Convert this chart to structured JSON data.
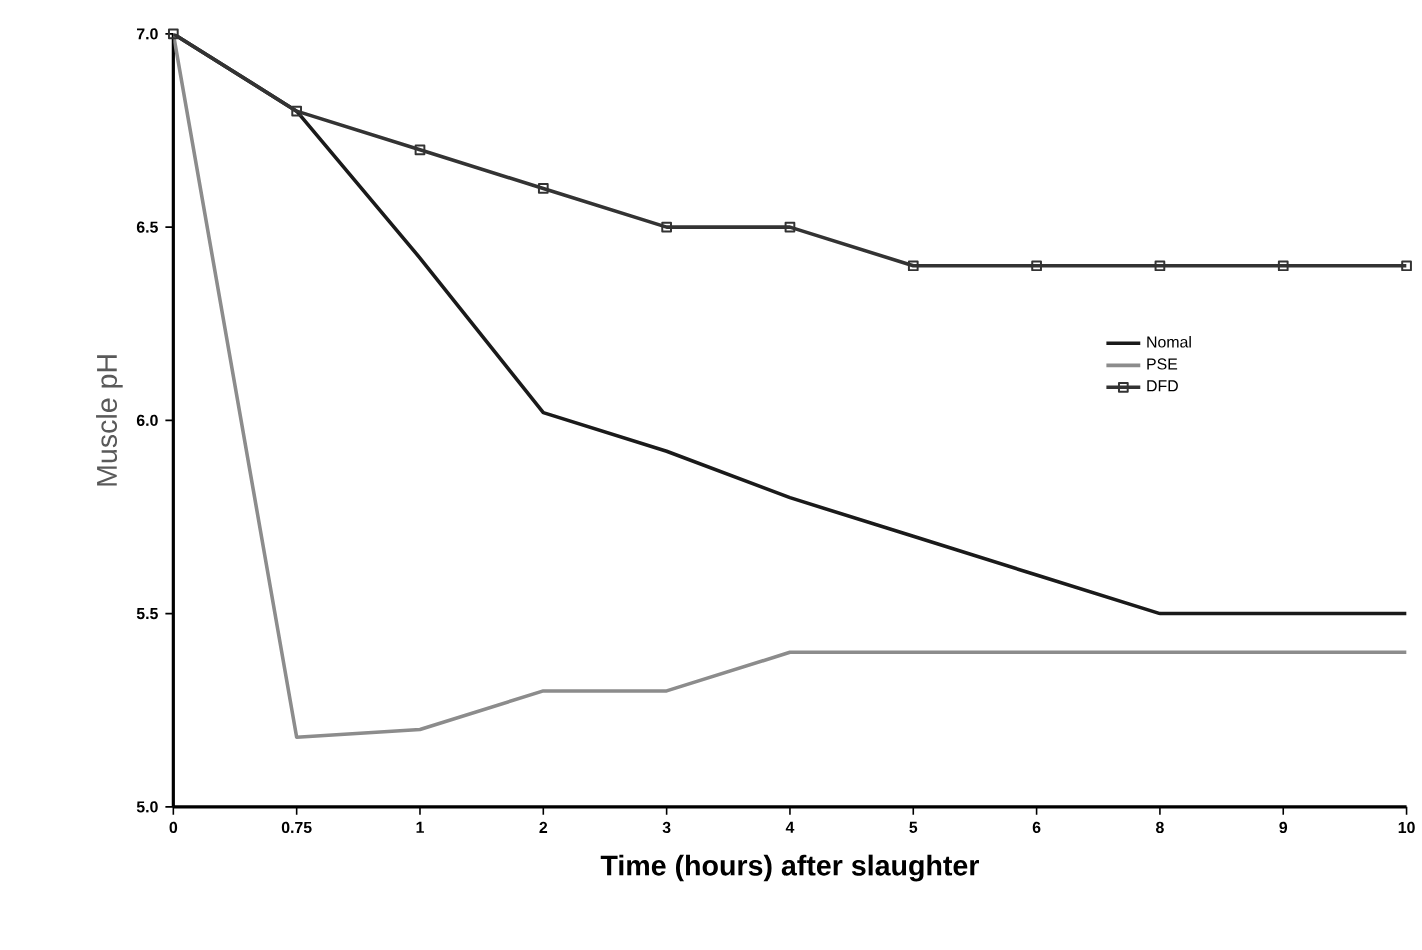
{
  "chart_data": {
    "type": "line",
    "xlabel": "Time (hours) after slaughter",
    "ylabel": "Muscle pH",
    "categories": [
      "0",
      "0.75",
      "1",
      "2",
      "3",
      "4",
      "5",
      "6",
      "8",
      "9",
      "10"
    ],
    "series": [
      {
        "name": "Nomal",
        "color": "#1a1a1a",
        "values": [
          7.0,
          6.8,
          6.42,
          6.02,
          5.92,
          5.8,
          5.7,
          5.6,
          5.5,
          5.5,
          5.5
        ]
      },
      {
        "name": "PSE",
        "color": "#8c8c8c",
        "values": [
          7.0,
          5.18,
          5.2,
          5.3,
          5.3,
          5.4,
          5.4,
          5.4,
          5.4,
          5.4,
          5.4
        ]
      },
      {
        "name": "DFD",
        "color": "#333333",
        "marker": "square",
        "values": [
          7.0,
          6.8,
          6.7,
          6.6,
          6.5,
          6.5,
          6.4,
          6.4,
          6.4,
          6.4,
          6.4
        ]
      }
    ],
    "ylim": [
      5.0,
      7.0
    ],
    "yticks": [
      {
        "value": 5.0,
        "label": "5.0"
      },
      {
        "value": 5.5,
        "label": "5.5"
      },
      {
        "value": 6.0,
        "label": "6.0"
      },
      {
        "value": 6.5,
        "label": "6.5"
      },
      {
        "value": 7.0,
        "label": "7.0"
      }
    ],
    "grid": false,
    "legend": "right",
    "line_style": "solid"
  }
}
